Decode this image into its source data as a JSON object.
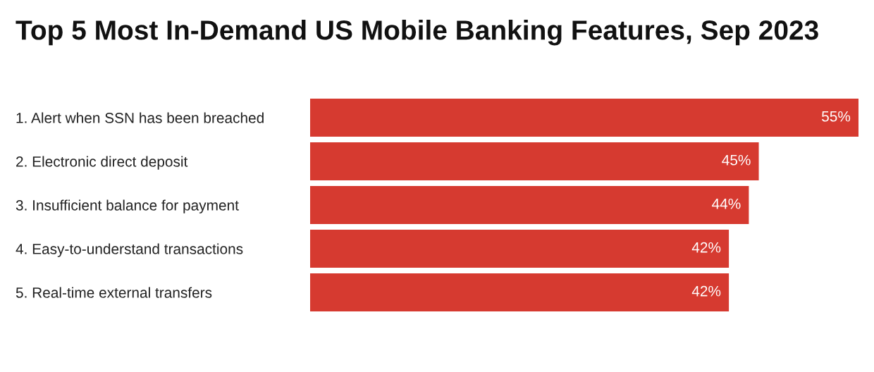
{
  "chart_data": {
    "type": "bar",
    "orientation": "horizontal",
    "title": "Top 5 Most In-Demand US Mobile Banking Features, Sep 2023",
    "categories": [
      "1. Alert when SSN has been breached",
      "2. Electronic direct deposit",
      "3. Insufficient balance for payment",
      "4. Easy-to-understand transactions",
      "5. Real-time external transfers"
    ],
    "values": [
      55,
      45,
      44,
      42,
      42
    ],
    "color": "#d63a30",
    "value_labels": [
      "55%",
      "45%",
      "44%",
      "42%",
      "42%"
    ],
    "xlim": [
      0,
      55
    ],
    "tick_labels": "y",
    "grid": false,
    "legend": false
  }
}
